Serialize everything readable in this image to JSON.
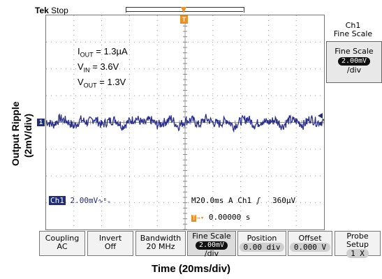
{
  "scope": {
    "brand": "Tek",
    "state": "Stop",
    "trigger_marker": "T",
    "channel_marker": "1"
  },
  "annotations": [
    {
      "main": "I",
      "sub": "OUT",
      "value": " = 1.3µA"
    },
    {
      "main": "V",
      "sub": "IN",
      "value": " = 3.6V"
    },
    {
      "main": "V",
      "sub": "OUT",
      "value": " = 1.3V"
    }
  ],
  "readout": {
    "channel": "Ch1",
    "scale": "2.00mV",
    "bw_symbol": "∿ᴮᵥ",
    "timebase": "M20.0ms",
    "mode": "A",
    "trig_channel": "Ch1",
    "trig_slope": "ʃ",
    "trig_level": "360µV",
    "trig_pos": "0.00000 s"
  },
  "right_panel": {
    "title_line1": "Ch1",
    "title_line2": "Fine Scale",
    "box_line1": "Fine Scale",
    "box_value": "2.00mV",
    "box_line3": "/div"
  },
  "menu": [
    {
      "name": "Coupling",
      "value": "AC"
    },
    {
      "name": "Invert",
      "value": "Off"
    },
    {
      "name": "Bandwidth",
      "value": "20 MHz"
    },
    {
      "name": "Fine Scale",
      "value": "2.00mV",
      "extra": "/div"
    },
    {
      "name": "Position",
      "value": "0.00 div"
    },
    {
      "name": "Offset",
      "value": "0.000 V"
    },
    {
      "name": "Probe Setup",
      "value": "1 X"
    }
  ],
  "colors": {
    "trace": "#2a2f8c",
    "trigger": "#e8902a"
  },
  "chart_data": {
    "type": "line",
    "xlabel": "Time (20ms/div)",
    "ylabel_line1": "Output Ripple",
    "ylabel_line2": "(2mV/div)",
    "x_divisions": 10,
    "y_divisions": 8,
    "xlim": [
      0,
      200
    ],
    "ylim": [
      -8,
      8
    ],
    "series": [
      {
        "x": [
          0,
          5,
          10,
          15,
          20,
          25,
          30,
          35,
          40,
          45,
          50,
          55,
          60,
          65,
          70,
          75,
          80,
          85,
          90,
          95,
          100,
          105,
          110,
          115,
          120,
          125,
          130,
          135,
          140,
          145,
          150,
          155,
          160,
          165,
          170,
          175,
          180,
          185,
          190,
          195,
          200
        ],
        "values": [
          0.1,
          -0.2,
          0.3,
          0.1,
          -0.3,
          0.2,
          0.0,
          0.3,
          -0.2,
          0.1,
          0.2,
          -0.3,
          0.1,
          0.3,
          -0.1,
          0.2,
          -0.2,
          0.0,
          0.3,
          -0.3,
          0.1,
          0.2,
          -0.2,
          0.3,
          0.0,
          -0.1,
          0.2,
          -0.3,
          0.1,
          0.3,
          -0.2,
          0.1,
          0.0,
          0.2,
          -0.3,
          0.2,
          0.1,
          -0.2,
          0.3,
          0.0,
          0.1
        ]
      }
    ]
  }
}
